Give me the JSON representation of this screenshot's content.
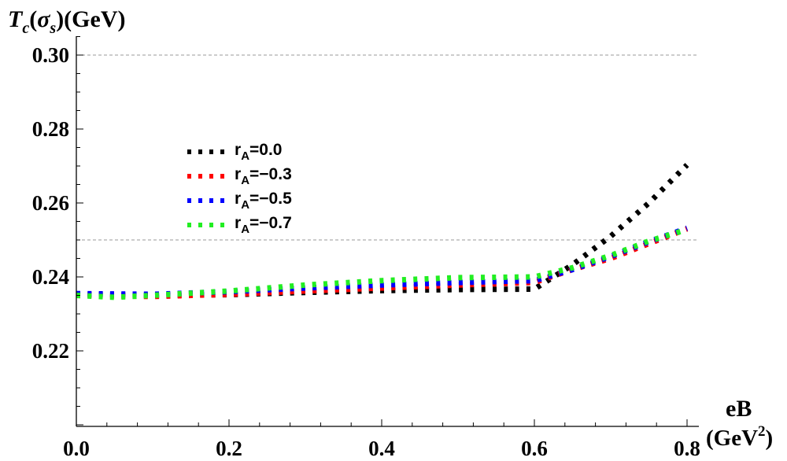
{
  "chart_data": {
    "type": "line",
    "ylabel_main": "T",
    "ylabel_sub": "c",
    "ylabel_paren_open": "(",
    "ylabel_sigma": "σ",
    "ylabel_sigma_sub": "s",
    "ylabel_unit": ")(GeV)",
    "xlabel_main": "eB",
    "xlabel_unit_open": "(GeV",
    "xlabel_unit_sup": "2",
    "xlabel_unit_close": ")",
    "xlim": [
      0.0,
      0.8
    ],
    "ylim": [
      0.2,
      0.305
    ],
    "x_ticks": [
      "0.0",
      "0.2",
      "0.4",
      "0.6",
      "0.8"
    ],
    "x_tick_values": [
      0.0,
      0.2,
      0.4,
      0.6,
      0.8
    ],
    "y_ticks": [
      "0.22",
      "0.24",
      "0.26",
      "0.28",
      "0.30"
    ],
    "y_tick_values": [
      0.22,
      0.24,
      0.26,
      0.28,
      0.3
    ],
    "gridlines_y": [
      0.3,
      0.25
    ],
    "legend_position": "center-left",
    "series": [
      {
        "name": "r_A=0.0",
        "legend_prefix": "r",
        "legend_sub": "A",
        "legend_suffix": "=0.0",
        "color": "#000000",
        "x": [
          0.0,
          0.1,
          0.2,
          0.3,
          0.4,
          0.5,
          0.6,
          0.65,
          0.7,
          0.75,
          0.8
        ],
        "y": [
          0.2353,
          0.235,
          0.2352,
          0.2358,
          0.2363,
          0.2366,
          0.2367,
          0.2433,
          0.251,
          0.26,
          0.2703
        ]
      },
      {
        "name": "r_A=-0.3",
        "legend_prefix": "r",
        "legend_sub": "A",
        "legend_suffix": "=−0.3",
        "color": "#ff0000",
        "x": [
          0.0,
          0.1,
          0.2,
          0.3,
          0.4,
          0.5,
          0.6,
          0.65,
          0.7,
          0.75,
          0.8
        ],
        "y": [
          0.235,
          0.2347,
          0.2353,
          0.2362,
          0.237,
          0.2378,
          0.2385,
          0.242,
          0.245,
          0.249,
          0.253
        ]
      },
      {
        "name": "r_A=-0.5",
        "legend_prefix": "r",
        "legend_sub": "A",
        "legend_suffix": "=−0.5",
        "color": "#0000ff",
        "x": [
          0.0,
          0.1,
          0.2,
          0.3,
          0.4,
          0.5,
          0.6,
          0.65,
          0.7,
          0.75,
          0.8
        ],
        "y": [
          0.2355,
          0.2353,
          0.236,
          0.237,
          0.2378,
          0.2385,
          0.239,
          0.242,
          0.2455,
          0.2495,
          0.2532
        ]
      },
      {
        "name": "r_A=-0.7",
        "legend_prefix": "r",
        "legend_sub": "A",
        "legend_suffix": "=−0.7",
        "color": "#22ee22",
        "x": [
          0.0,
          0.05,
          0.1,
          0.2,
          0.3,
          0.4,
          0.5,
          0.6,
          0.65,
          0.7,
          0.75,
          0.8
        ],
        "y": [
          0.235,
          0.2345,
          0.235,
          0.2362,
          0.2378,
          0.239,
          0.2398,
          0.24,
          0.2425,
          0.2458,
          0.2497,
          0.2528
        ]
      }
    ]
  }
}
